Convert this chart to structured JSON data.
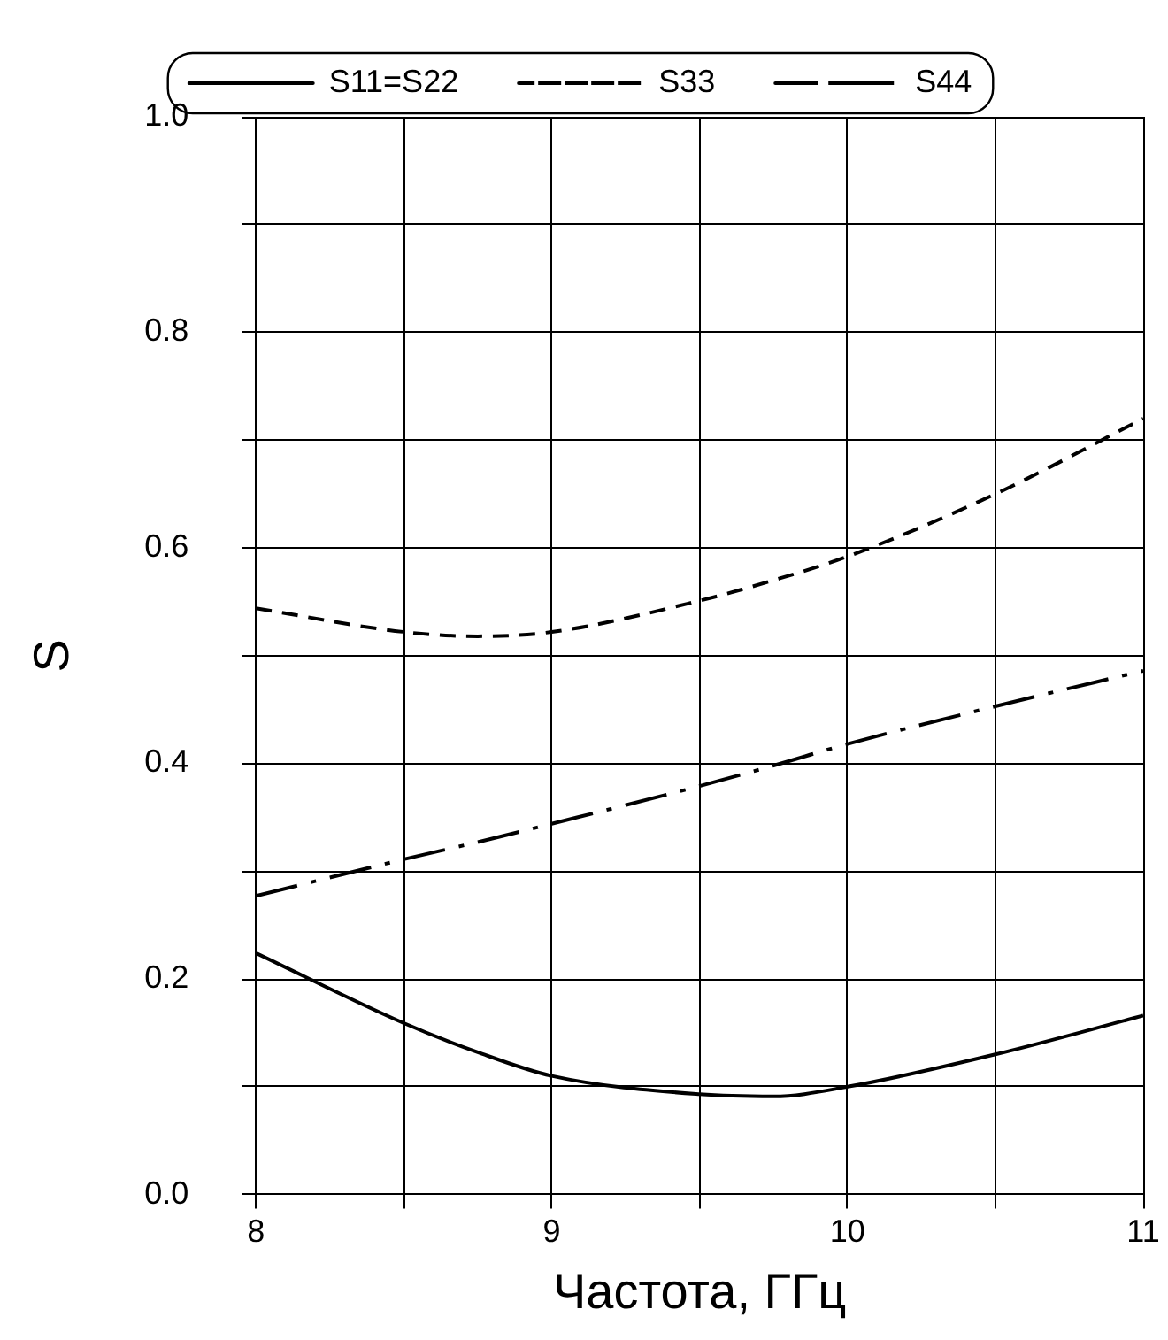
{
  "chart_data": {
    "type": "line",
    "xlabel": "Частота, ГГц",
    "ylabel": "S",
    "x": [
      8,
      8.5,
      8.75,
      9,
      9.5,
      9.75,
      10,
      10.5,
      11
    ],
    "series": [
      {
        "name": "S11=S22",
        "color": "#000000",
        "line_style": "solid",
        "values": [
          0.224,
          0.159,
          0.132,
          0.11,
          0.093,
          0.091,
          0.1,
          0.13,
          0.166
        ]
      },
      {
        "name": "S33",
        "color": "#000000",
        "line_style": "dashed",
        "values": [
          0.544,
          0.522,
          0.518,
          0.522,
          0.551,
          0.57,
          0.592,
          0.65,
          0.72
        ]
      },
      {
        "name": "S44",
        "color": "#000000",
        "line_style": "dashdot",
        "values": [
          0.277,
          0.311,
          0.327,
          0.344,
          0.379,
          0.398,
          0.418,
          0.453,
          0.486
        ]
      }
    ],
    "xlim": [
      8,
      11
    ],
    "ylim": [
      0,
      1
    ],
    "xticks": [
      8,
      {
        "value": 8.5,
        "label": null
      },
      9,
      {
        "value": 9.5,
        "label": null
      },
      10,
      {
        "value": 10.5,
        "label": null
      },
      11
    ],
    "yticks": [
      {
        "value": 0,
        "label": "0.0"
      },
      {
        "value": 0.1,
        "label": null
      },
      0.2,
      {
        "value": 0.3,
        "label": null
      },
      0.4,
      {
        "value": 0.5,
        "label": null
      },
      0.6,
      {
        "value": 0.7,
        "label": null
      },
      0.8,
      {
        "value": 0.9,
        "label": null
      },
      {
        "value": 1,
        "label": "1.0"
      }
    ],
    "grid": true,
    "legend": "top",
    "marker": "none"
  }
}
